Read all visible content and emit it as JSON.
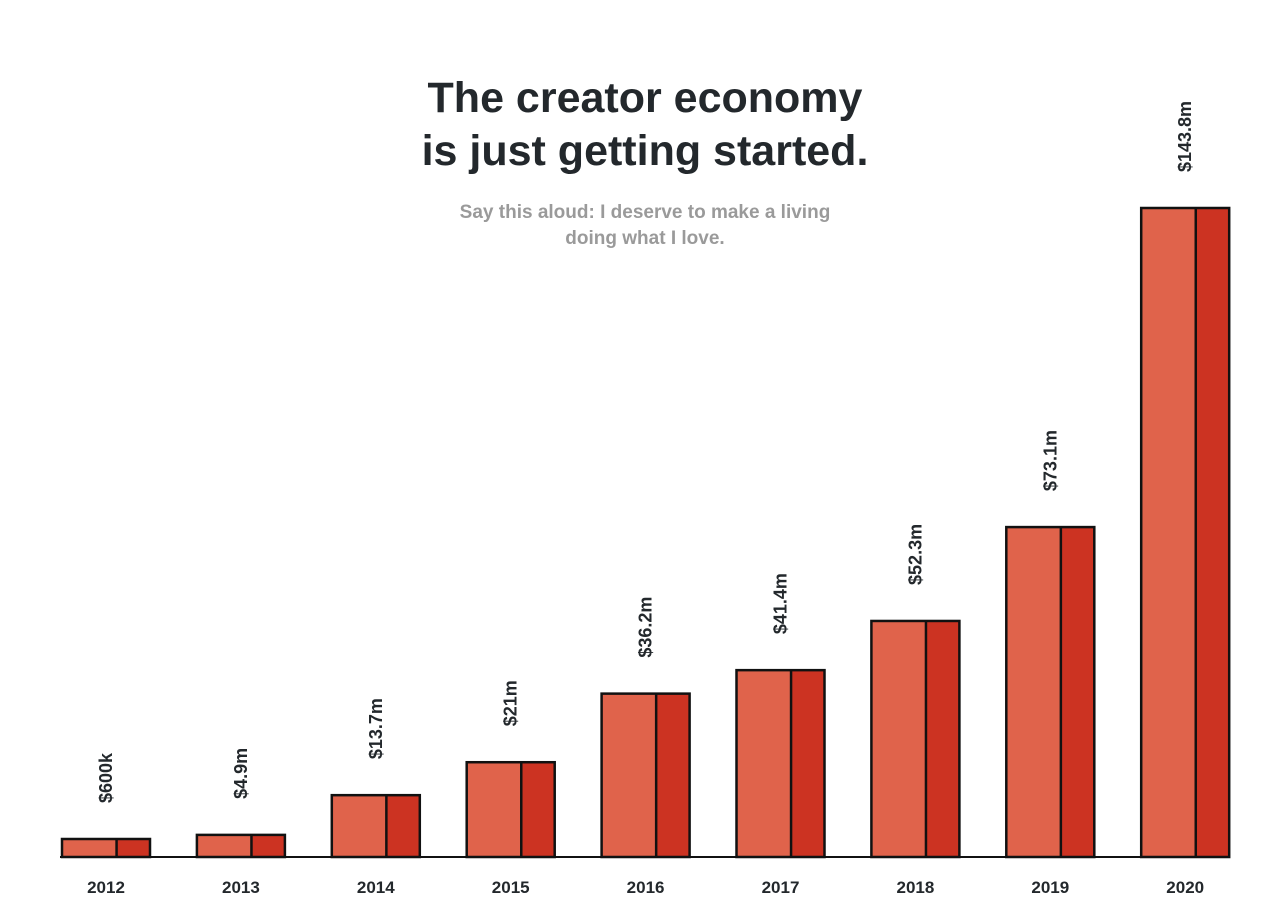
{
  "chart_data": {
    "type": "bar",
    "title_lines": [
      "The creator economy",
      "is just getting started."
    ],
    "subtitle_lines": [
      "Say this aloud: I deserve to make a living",
      "doing what I love."
    ],
    "categories": [
      "2012",
      "2013",
      "2014",
      "2015",
      "2016",
      "2017",
      "2018",
      "2019",
      "2020"
    ],
    "values": [
      0.6,
      4.9,
      13.7,
      21,
      36.2,
      41.4,
      52.3,
      73.1,
      143.8
    ],
    "data_labels": [
      "$600k",
      "$4.9m",
      "$13.7m",
      "$21m",
      "$36.2m",
      "$41.4m",
      "$52.3m",
      "$73.1m",
      "$143.8m"
    ],
    "xlabel": "",
    "ylabel": "",
    "ylim": [
      0,
      143.8
    ],
    "grid": false,
    "legend": "none",
    "colors": {
      "bar_front": "#e0634b",
      "bar_side": "#cc3322",
      "outline": "#111111",
      "title": "#23282c",
      "subtitle": "#9a9a9a"
    }
  }
}
